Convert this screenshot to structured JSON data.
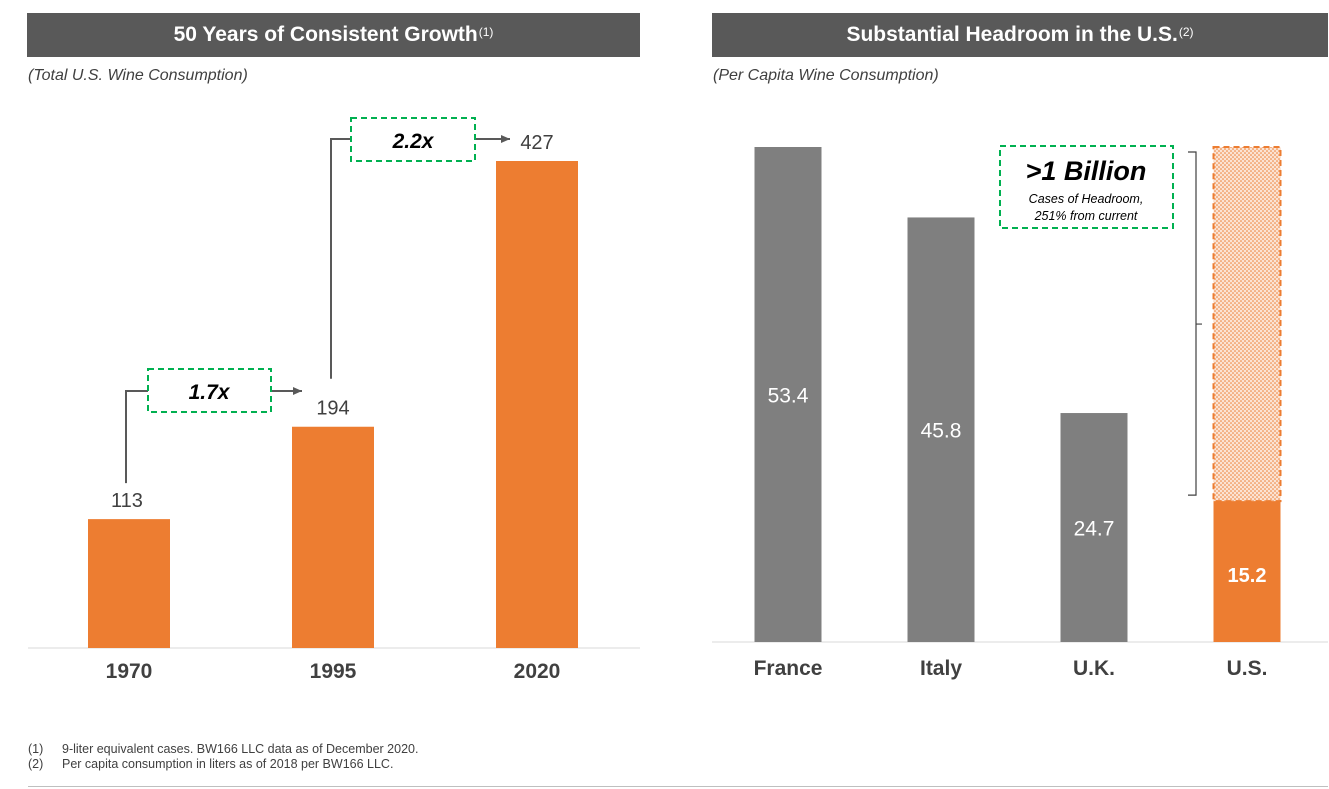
{
  "colors": {
    "orange": "#ed7d31",
    "gray": "#7f7f7f",
    "header": "#595959",
    "green": "#00b050"
  },
  "left_panel": {
    "title": "50 Years of Consistent Growth",
    "title_note": "(1)",
    "subtitle": "(Total U.S. Wine Consumption)",
    "growth_callouts": [
      {
        "label": "1.7x"
      },
      {
        "label": "2.2x"
      }
    ]
  },
  "right_panel": {
    "title": "Substantial Headroom in the U.S.",
    "title_note": "(2)",
    "subtitle": "(Per Capita Wine Consumption)",
    "callout": {
      "headline": ">1 Billion",
      "line1": "Cases of Headroom,",
      "line2": "251% from current"
    }
  },
  "chart_data": [
    {
      "type": "bar",
      "title": "50 Years of Consistent Growth",
      "subtitle": "(Total U.S. Wine Consumption)",
      "categories": [
        "1970",
        "1995",
        "2020"
      ],
      "values": [
        113,
        194,
        427
      ],
      "ylim": [
        0,
        427
      ],
      "xlabel": "",
      "ylabel": "",
      "grid": false
    },
    {
      "type": "bar",
      "title": "Substantial Headroom in the U.S.",
      "subtitle": "(Per Capita Wine Consumption)",
      "categories": [
        "France",
        "Italy",
        "U.K.",
        "U.S."
      ],
      "values": [
        53.4,
        45.8,
        24.7,
        15.2
      ],
      "headroom_target": 53.4,
      "ylim": [
        0,
        53.4
      ],
      "xlabel": "",
      "ylabel": "",
      "grid": false
    }
  ],
  "footnotes": [
    {
      "num": "(1)",
      "text": "9-liter equivalent cases. BW166 LLC data as of December 2020."
    },
    {
      "num": "(2)",
      "text": "Per capita consumption in liters as of 2018 per BW166 LLC."
    }
  ]
}
